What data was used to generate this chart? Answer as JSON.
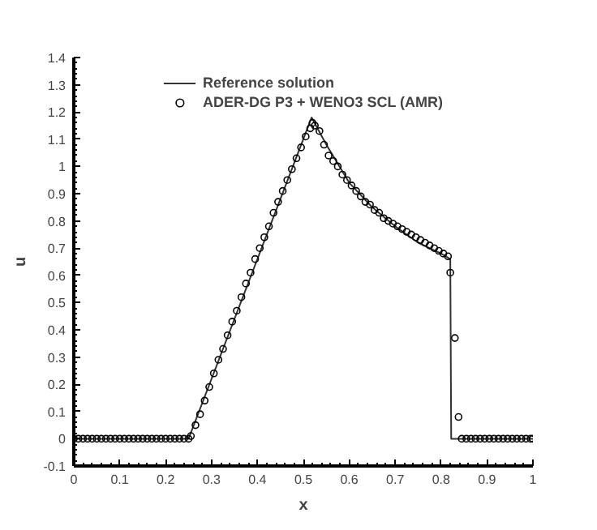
{
  "chart_data": {
    "type": "line",
    "xlabel": "x",
    "ylabel": "u",
    "xlim": [
      0,
      1
    ],
    "ylim": [
      -0.1,
      1.4
    ],
    "xticks": [
      0,
      0.1,
      0.2,
      0.3,
      0.4,
      0.5,
      0.6,
      0.7,
      0.8,
      0.9,
      1
    ],
    "yticks": [
      -0.1,
      0,
      0.1,
      0.2,
      0.3,
      0.4,
      0.5,
      0.6,
      0.7,
      0.8,
      0.9,
      1,
      1.1,
      1.2,
      1.3,
      1.4
    ],
    "grid": false,
    "legend": "top",
    "series": [
      {
        "name": "Reference solution",
        "color": "#333333",
        "line_style": "solid",
        "x": [
          0,
          0.25,
          0.518,
          0.55,
          0.6,
          0.65,
          0.7,
          0.75,
          0.8,
          0.82,
          0.822,
          1
        ],
        "values": [
          0,
          0,
          1.18,
          1.08,
          0.94,
          0.85,
          0.78,
          0.72,
          0.68,
          0.66,
          0,
          0
        ]
      },
      {
        "name": "ADER-DG P3 + WENO3 SCL (AMR)",
        "type": "scatter",
        "color": "#000000",
        "marker": "circle",
        "x": [
          0,
          0.01,
          0.02,
          0.03,
          0.04,
          0.05,
          0.06,
          0.07,
          0.08,
          0.09,
          0.1,
          0.11,
          0.12,
          0.13,
          0.14,
          0.15,
          0.16,
          0.17,
          0.18,
          0.19,
          0.2,
          0.21,
          0.22,
          0.23,
          0.24,
          0.25,
          0.255,
          0.265,
          0.275,
          0.285,
          0.295,
          0.305,
          0.315,
          0.325,
          0.335,
          0.345,
          0.355,
          0.365,
          0.375,
          0.385,
          0.395,
          0.405,
          0.415,
          0.425,
          0.435,
          0.445,
          0.455,
          0.465,
          0.475,
          0.485,
          0.495,
          0.505,
          0.515,
          0.52,
          0.525,
          0.535,
          0.545,
          0.555,
          0.565,
          0.575,
          0.585,
          0.595,
          0.605,
          0.615,
          0.625,
          0.635,
          0.645,
          0.655,
          0.665,
          0.675,
          0.685,
          0.695,
          0.705,
          0.715,
          0.725,
          0.735,
          0.745,
          0.755,
          0.765,
          0.775,
          0.785,
          0.795,
          0.805,
          0.815,
          0.82,
          0.83,
          0.838,
          0.845,
          0.855,
          0.865,
          0.875,
          0.885,
          0.895,
          0.905,
          0.915,
          0.925,
          0.935,
          0.945,
          0.955,
          0.965,
          0.975,
          0.985,
          0.995,
          1
        ],
        "values": [
          0,
          0,
          0,
          0,
          0,
          0,
          0,
          0,
          0,
          0,
          0,
          0,
          0,
          0,
          0,
          0,
          0,
          0,
          0,
          0,
          0,
          0,
          0,
          0,
          0,
          0,
          0.01,
          0.05,
          0.09,
          0.14,
          0.19,
          0.24,
          0.29,
          0.33,
          0.38,
          0.43,
          0.47,
          0.52,
          0.57,
          0.61,
          0.66,
          0.7,
          0.74,
          0.78,
          0.83,
          0.87,
          0.91,
          0.95,
          0.99,
          1.03,
          1.07,
          1.11,
          1.14,
          1.16,
          1.15,
          1.13,
          1.08,
          1.04,
          1.02,
          1,
          0.97,
          0.95,
          0.93,
          0.91,
          0.89,
          0.87,
          0.86,
          0.84,
          0.83,
          0.81,
          0.8,
          0.79,
          0.78,
          0.77,
          0.76,
          0.75,
          0.74,
          0.73,
          0.72,
          0.71,
          0.7,
          0.69,
          0.68,
          0.67,
          0.61,
          0.37,
          0.08,
          0,
          0,
          0,
          0,
          0,
          0,
          0,
          0,
          0,
          0,
          0,
          0,
          0,
          0,
          0,
          0,
          0
        ]
      }
    ]
  }
}
